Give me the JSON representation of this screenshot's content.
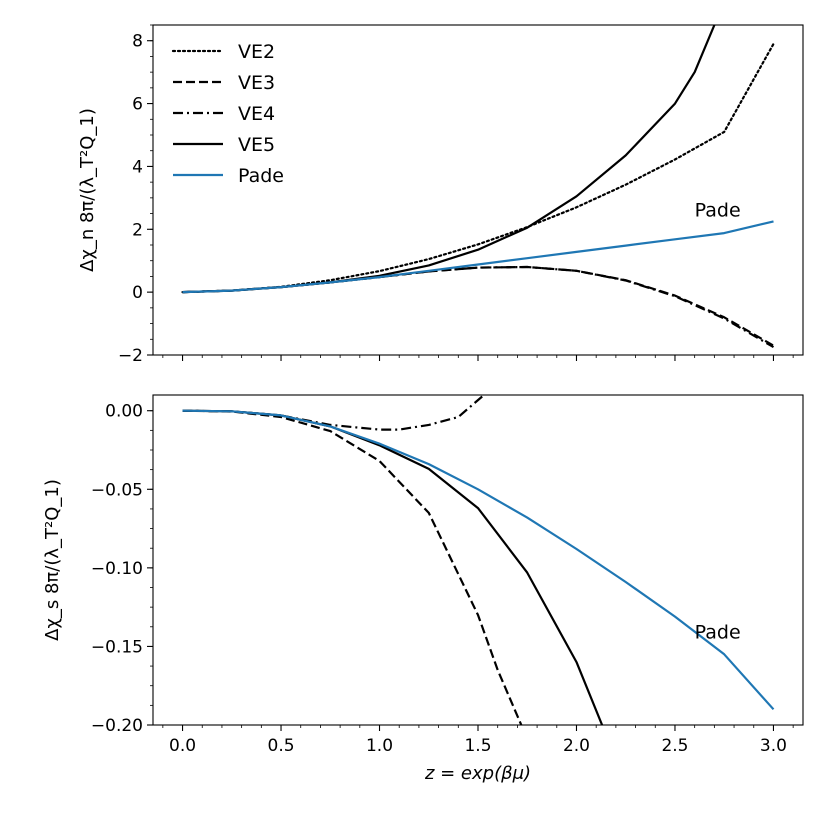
{
  "chart_data": [
    {
      "type": "line",
      "xlabel": "",
      "ylabel": "Δχ_n 8π/(λ_T²Q_1)",
      "ylim": [
        -2,
        8.5
      ],
      "xlim": [
        -0.15,
        3.15
      ],
      "yticks": [
        -2,
        0,
        2,
        4,
        6,
        8
      ],
      "ytick_labels": [
        "−2",
        "0",
        "2",
        "4",
        "6",
        "8"
      ],
      "grid": false,
      "legend": {
        "placement": "top-left",
        "entries": [
          "VE2",
          "VE3",
          "VE4",
          "VE5",
          "Pade"
        ]
      },
      "annotations": [
        {
          "text": "Pade",
          "x": 2.6,
          "y": 2.4
        }
      ],
      "series": [
        {
          "name": "VE2",
          "style": "dotted",
          "color": "#000000",
          "x": [
            0,
            0.25,
            0.5,
            0.75,
            1.0,
            1.25,
            1.5,
            1.75,
            2.0,
            2.25,
            2.5,
            2.75,
            3.0
          ],
          "y": [
            0,
            0.05,
            0.17,
            0.38,
            0.67,
            1.05,
            1.52,
            2.07,
            2.7,
            3.42,
            4.22,
            5.1,
            7.9
          ]
        },
        {
          "name": "VE3",
          "style": "dashed",
          "color": "#000000",
          "x": [
            0,
            0.25,
            0.5,
            0.75,
            1.0,
            1.25,
            1.5,
            1.75,
            2.0,
            2.25,
            2.5,
            2.75,
            3.0
          ],
          "y": [
            0,
            0.05,
            0.16,
            0.31,
            0.48,
            0.66,
            0.78,
            0.8,
            0.68,
            0.38,
            -0.11,
            -0.8,
            -1.7
          ]
        },
        {
          "name": "VE4",
          "style": "dashdot",
          "color": "#000000",
          "x": [
            0,
            0.25,
            0.5,
            0.75,
            1.0,
            1.25,
            1.5,
            1.75,
            2.0,
            2.25,
            2.5,
            2.75,
            3.0
          ],
          "y": [
            0,
            0.05,
            0.16,
            0.31,
            0.48,
            0.66,
            0.78,
            0.8,
            0.68,
            0.37,
            -0.13,
            -0.84,
            -1.75
          ]
        },
        {
          "name": "VE5",
          "style": "solid",
          "color": "#000000",
          "x": [
            0,
            0.25,
            0.5,
            0.75,
            1.0,
            1.25,
            1.5,
            1.75,
            2.0,
            2.25,
            2.5,
            2.6,
            2.7
          ],
          "y": [
            0,
            0.05,
            0.16,
            0.31,
            0.52,
            0.85,
            1.35,
            2.05,
            3.05,
            4.35,
            6.0,
            7.0,
            8.5
          ]
        },
        {
          "name": "Pade",
          "style": "solid",
          "color": "#1f77b4",
          "x": [
            0,
            0.25,
            0.5,
            0.75,
            1.0,
            1.25,
            1.5,
            1.75,
            2.0,
            2.25,
            2.5,
            2.75,
            3.0
          ],
          "y": [
            0,
            0.05,
            0.16,
            0.31,
            0.48,
            0.68,
            0.88,
            1.08,
            1.28,
            1.48,
            1.68,
            1.88,
            2.25
          ]
        }
      ]
    },
    {
      "type": "line",
      "xlabel": "z = exp(βμ)",
      "ylabel": "Δχ_s 8π/(λ_T²Q_1)",
      "ylim": [
        -0.2,
        0.01
      ],
      "xlim": [
        -0.15,
        3.15
      ],
      "xticks": [
        0,
        0.5,
        1,
        1.5,
        2,
        2.5,
        3
      ],
      "xtick_labels": [
        "0.0",
        "0.5",
        "1.0",
        "1.5",
        "2.0",
        "2.5",
        "3.0"
      ],
      "yticks": [
        0,
        -0.05,
        -0.1,
        -0.15,
        -0.2
      ],
      "ytick_labels": [
        "0.00",
        "−0.05",
        "−0.10",
        "−0.15",
        "−0.20"
      ],
      "grid": false,
      "annotations": [
        {
          "text": "Pade",
          "x": 2.6,
          "y": -0.145
        }
      ],
      "series": [
        {
          "name": "VE3",
          "style": "dashed",
          "color": "#000000",
          "x": [
            0,
            0.25,
            0.5,
            0.75,
            1.0,
            1.25,
            1.5,
            1.6,
            1.72
          ],
          "y": [
            0,
            -0.0005,
            -0.004,
            -0.013,
            -0.032,
            -0.065,
            -0.13,
            -0.165,
            -0.2
          ]
        },
        {
          "name": "VE4",
          "style": "dashdot",
          "color": "#000000",
          "x": [
            0,
            0.25,
            0.5,
            0.75,
            1.0,
            1.1,
            1.25,
            1.4,
            1.53
          ],
          "y": [
            0,
            -0.0004,
            -0.003,
            -0.009,
            -0.012,
            -0.012,
            -0.009,
            -0.004,
            0.01
          ]
        },
        {
          "name": "VE5",
          "style": "solid",
          "color": "#000000",
          "x": [
            0,
            0.25,
            0.5,
            0.75,
            1.0,
            1.25,
            1.5,
            1.75,
            2.0,
            2.13
          ],
          "y": [
            0,
            -0.0004,
            -0.003,
            -0.01,
            -0.022,
            -0.037,
            -0.062,
            -0.103,
            -0.16,
            -0.2
          ]
        },
        {
          "name": "Pade",
          "style": "solid",
          "color": "#1f77b4",
          "x": [
            0,
            0.25,
            0.5,
            0.75,
            1.0,
            1.25,
            1.5,
            1.75,
            2.0,
            2.25,
            2.5,
            2.75,
            3.0
          ],
          "y": [
            0,
            -0.0004,
            -0.003,
            -0.01,
            -0.021,
            -0.034,
            -0.05,
            -0.068,
            -0.088,
            -0.109,
            -0.131,
            -0.155,
            -0.19
          ]
        }
      ]
    }
  ]
}
